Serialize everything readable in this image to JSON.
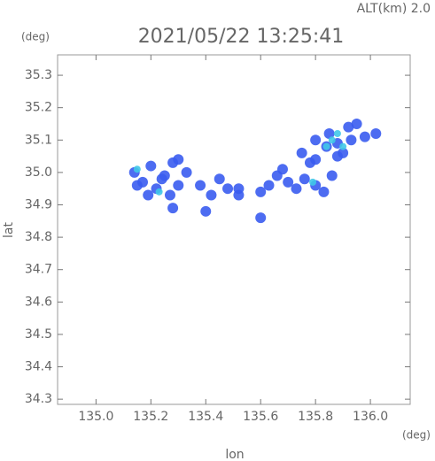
{
  "chart_data": {
    "type": "scatter",
    "title": "2021/05/22 13:25:41",
    "subtitle": "ALT(km) 2.0",
    "y_unit": "(deg)",
    "x_unit": "(deg)",
    "x_label": "lon",
    "y_label": "lat",
    "xlim": [
      134.86,
      136.145
    ],
    "ylim": [
      34.284,
      35.363
    ],
    "xticks": [
      {
        "value": 135,
        "label": "135.0"
      },
      135.2,
      135.4,
      135.6,
      135.8,
      {
        "value": 136,
        "label": "136.0"
      }
    ],
    "yticks": [
      34.3,
      34.4,
      34.5,
      34.6,
      34.7,
      34.8,
      34.9,
      {
        "value": 35,
        "label": "35.0"
      },
      35.1,
      35.2,
      35.3
    ],
    "series": [
      {
        "color": "#3a5cf0",
        "x": [
          135.14,
          135.17,
          135.2,
          135.22,
          135.25,
          135.28,
          135.3,
          135.33,
          135.15,
          135.19,
          135.27,
          135.24,
          135.3,
          135.38,
          135.42,
          135.45,
          135.48,
          135.52,
          135.4,
          135.6,
          135.63,
          135.66,
          135.7,
          135.73,
          135.76,
          135.8,
          135.83,
          135.68,
          135.78,
          135.86,
          135.75,
          135.8,
          135.85,
          135.88,
          135.92,
          135.95,
          135.98,
          136.02,
          135.9,
          135.84,
          135.88,
          135.93,
          135.8,
          135.28,
          135.52,
          135.6
        ],
        "values": [
          35.0,
          34.97,
          35.02,
          34.95,
          34.99,
          35.03,
          34.96,
          35.0,
          34.96,
          34.93,
          34.93,
          34.98,
          35.04,
          34.96,
          34.93,
          34.98,
          34.95,
          34.93,
          34.88,
          34.94,
          34.96,
          34.99,
          34.97,
          34.95,
          34.98,
          34.96,
          34.94,
          35.01,
          35.03,
          34.99,
          35.06,
          35.1,
          35.12,
          35.09,
          35.14,
          35.15,
          35.11,
          35.12,
          35.06,
          35.08,
          35.05,
          35.1,
          35.04,
          34.89,
          34.95,
          34.86
        ]
      },
      {
        "color": "#40c8e8",
        "x": [
          135.86,
          135.88,
          135.9,
          135.84,
          135.79,
          135.23,
          135.15
        ],
        "values": [
          35.1,
          35.12,
          35.08,
          35.08,
          34.97,
          34.94,
          35.01
        ]
      }
    ]
  }
}
